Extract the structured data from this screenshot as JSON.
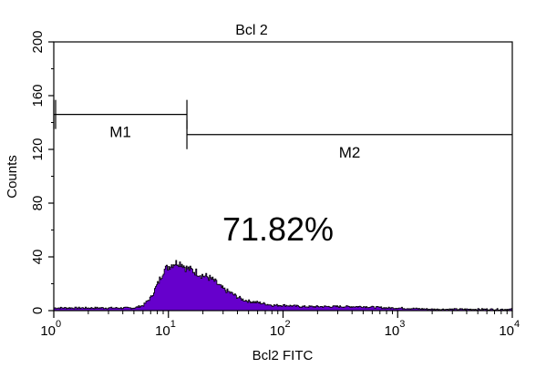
{
  "chart_data": {
    "type": "area",
    "title": "Bcl 2",
    "xlabel": "Bcl2 FITC",
    "ylabel": "Counts",
    "x_scale": "log",
    "xlim": [
      1,
      10000
    ],
    "ylim": [
      0,
      200
    ],
    "x_ticks": [
      {
        "value": 1,
        "base": "10",
        "exp": "0"
      },
      {
        "value": 10,
        "base": "10",
        "exp": "1"
      },
      {
        "value": 100,
        "base": "10",
        "exp": "2"
      },
      {
        "value": 1000,
        "base": "10",
        "exp": "3"
      },
      {
        "value": 10000,
        "base": "10",
        "exp": "4"
      }
    ],
    "y_ticks": [
      "0",
      "40",
      "80",
      "120",
      "160",
      "200"
    ],
    "fill_color": "#6600cc",
    "series": [
      {
        "x": [
          1,
          5,
          6,
          7,
          8,
          8.5,
          9,
          10,
          11,
          12,
          13,
          14,
          16,
          18,
          20,
          22,
          25,
          28,
          30,
          35,
          40,
          45,
          50,
          60,
          70,
          80,
          100,
          150,
          200,
          300,
          500,
          800,
          1000,
          2000,
          5000,
          10000
        ],
        "y": [
          2,
          2,
          4,
          10,
          20,
          25,
          30,
          33,
          35,
          36,
          35,
          32,
          30,
          28,
          26,
          25,
          22,
          18,
          16,
          13,
          10,
          8,
          7,
          6,
          5,
          4,
          4,
          3,
          3,
          3,
          3,
          2,
          2,
          1,
          1,
          1
        ]
      }
    ],
    "markers": [
      {
        "label": "M1",
        "x_start": 1,
        "x_end": 14.5,
        "y": 146
      },
      {
        "label": "M2",
        "x_start": 14.5,
        "x_end": 10000,
        "y": 131
      }
    ],
    "annotations": [
      {
        "text": "71.82%"
      }
    ]
  }
}
